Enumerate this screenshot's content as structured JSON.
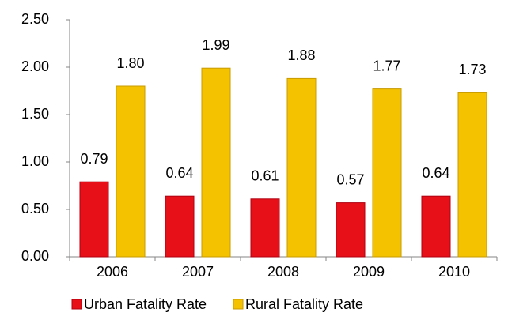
{
  "chart_data": {
    "type": "bar",
    "categories": [
      "2006",
      "2007",
      "2008",
      "2009",
      "2010"
    ],
    "series": [
      {
        "name": "Urban Fatality Rate",
        "color": "#e81018",
        "values": [
          0.79,
          0.64,
          0.61,
          0.57,
          0.64
        ],
        "value_labels": [
          "0.79",
          "0.64",
          "0.61",
          "0.57",
          "0.64"
        ]
      },
      {
        "name": "Rural Fatality Rate",
        "color": "#f5c200",
        "values": [
          1.8,
          1.99,
          1.88,
          1.77,
          1.73
        ],
        "value_labels": [
          "1.80",
          "1.99",
          "1.88",
          "1.77",
          "1.73"
        ]
      }
    ],
    "ylim": [
      0,
      2.5
    ],
    "yticks": [
      {
        "value": 0,
        "label": "0.00"
      },
      {
        "value": 0.5,
        "label": "0.50"
      },
      {
        "value": 1,
        "label": "1.00"
      },
      {
        "value": 1.5,
        "label": "1.50"
      },
      {
        "value": 2,
        "label": "2.00"
      },
      {
        "value": 2.5,
        "label": "2.50"
      }
    ],
    "grid": false,
    "legend": "bottom"
  }
}
